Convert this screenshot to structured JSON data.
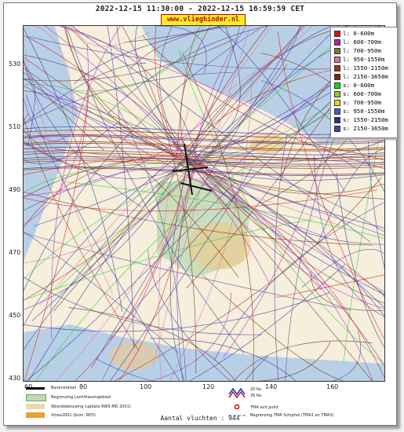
{
  "header": {
    "title": "2022-12-15 11:30:00 - 2022-12-15 16:59:59 CET",
    "site": "www.vlieghinder.nl"
  },
  "map": {
    "y_ticks": [
      "530",
      "510",
      "490",
      "470",
      "450",
      "430"
    ],
    "x_ticks": [
      "60",
      "80",
      "100",
      "120",
      "140",
      "160"
    ],
    "colors": {
      "water": "#b8d0e6",
      "land": "#f5efdc",
      "airport": "#bfd9b4",
      "urban": "#efc88a"
    }
  },
  "legend": {
    "items": [
      {
        "label": "l: 0-600m",
        "color": "#e01010"
      },
      {
        "label": "l: 600-700m",
        "color": "#b020c0"
      },
      {
        "label": "l: 700-950m",
        "color": "#6a8a1a"
      },
      {
        "label": "l: 950-1550m",
        "color": "#e070a0"
      },
      {
        "label": "l: 1550-2150m",
        "color": "#a03010"
      },
      {
        "label": "l: 2150-3650m",
        "color": "#7a2a0a"
      },
      {
        "label": "s: 0-600m",
        "color": "#20d020"
      },
      {
        "label": "s: 600-700m",
        "color": "#8ad020"
      },
      {
        "label": "s: 700-950m",
        "color": "#d8e020"
      },
      {
        "label": "s: 950-1550m",
        "color": "#4060c0"
      },
      {
        "label": "s: 1550-2150m",
        "color": "#303090"
      },
      {
        "label": "s: 2150-3650m",
        "color": "#4a40a0"
      }
    ]
  },
  "bottom_legend": {
    "runway": "Banenstelsel",
    "airport_area": "Begrenzing Luchthavengebied",
    "housing": "Woonbebouwing (update RWS-MD 2001)",
    "vinex": "Vinex2001 (bron: RPD)",
    "ke20": "20 Ke",
    "ke35": "35 Ke",
    "tma_exit": "TMA exit point",
    "tma_boundary": "Begrenzing TMA Schiphol  (TMA1 en TMA3)"
  },
  "footer": {
    "count_label": "Aantal vluchten : 944"
  }
}
